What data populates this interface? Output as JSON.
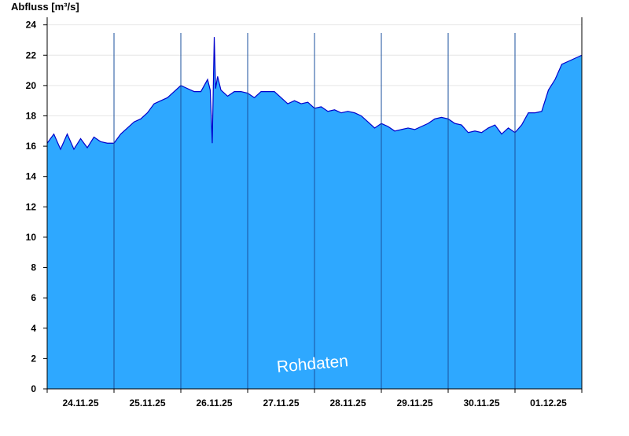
{
  "chart_data": {
    "type": "area",
    "title": "",
    "ylabel": "Abfluss [m³/s]",
    "xlabel": "",
    "ylim": [
      0,
      24.5
    ],
    "yticks": [
      0,
      2,
      4,
      6,
      8,
      10,
      12,
      14,
      16,
      18,
      20,
      22,
      24
    ],
    "x_range": [
      0,
      8
    ],
    "day_labels": [
      "24.11.25",
      "25.11.25",
      "26.11.25",
      "27.11.25",
      "28.11.25",
      "29.11.25",
      "30.11.25",
      "01.12.25"
    ],
    "grid": "horizontal",
    "fill_color": "#2ea8ff",
    "line_color": "#0000cc",
    "divider_color": "#1a4f9c",
    "watermark": "Rohdaten",
    "x_unit": "days since 24.11.25 00:00",
    "series": [
      {
        "name": "",
        "x": [
          0,
          0.1,
          0.2,
          0.3,
          0.4,
          0.5,
          0.6,
          0.7,
          0.8,
          0.9,
          1.0,
          1.1,
          1.2,
          1.3,
          1.4,
          1.5,
          1.6,
          1.7,
          1.8,
          1.9,
          2.0,
          2.1,
          2.2,
          2.3,
          2.4,
          2.44,
          2.47,
          2.5,
          2.52,
          2.55,
          2.6,
          2.7,
          2.8,
          2.9,
          3.0,
          3.1,
          3.2,
          3.3,
          3.4,
          3.5,
          3.6,
          3.7,
          3.8,
          3.9,
          4.0,
          4.1,
          4.2,
          4.3,
          4.4,
          4.5,
          4.6,
          4.7,
          4.8,
          4.9,
          5.0,
          5.1,
          5.2,
          5.3,
          5.4,
          5.5,
          5.6,
          5.7,
          5.8,
          5.9,
          6.0,
          6.1,
          6.2,
          6.3,
          6.4,
          6.5,
          6.6,
          6.7,
          6.8,
          6.9,
          7.0,
          7.1,
          7.2,
          7.3,
          7.4,
          7.5,
          7.6,
          7.7,
          7.8,
          8.0
        ],
        "values": [
          16.2,
          16.8,
          15.8,
          16.8,
          15.8,
          16.5,
          15.9,
          16.6,
          16.3,
          16.2,
          16.2,
          16.8,
          17.2,
          17.6,
          17.8,
          18.2,
          18.8,
          19.0,
          19.2,
          19.6,
          20.0,
          19.8,
          19.6,
          19.6,
          20.4,
          19.7,
          16.2,
          23.2,
          19.8,
          20.6,
          19.7,
          19.3,
          19.6,
          19.6,
          19.5,
          19.2,
          19.6,
          19.6,
          19.6,
          19.2,
          18.8,
          19.0,
          18.8,
          18.9,
          18.5,
          18.6,
          18.3,
          18.4,
          18.2,
          18.3,
          18.2,
          18.0,
          17.6,
          17.2,
          17.5,
          17.3,
          17.0,
          17.1,
          17.2,
          17.1,
          17.3,
          17.5,
          17.8,
          17.9,
          17.8,
          17.5,
          17.4,
          16.9,
          17.0,
          16.9,
          17.2,
          17.4,
          16.8,
          17.2,
          16.9,
          17.4,
          18.2,
          18.2,
          18.3,
          19.7,
          20.4,
          21.4,
          21.6,
          22.0
        ]
      }
    ]
  }
}
